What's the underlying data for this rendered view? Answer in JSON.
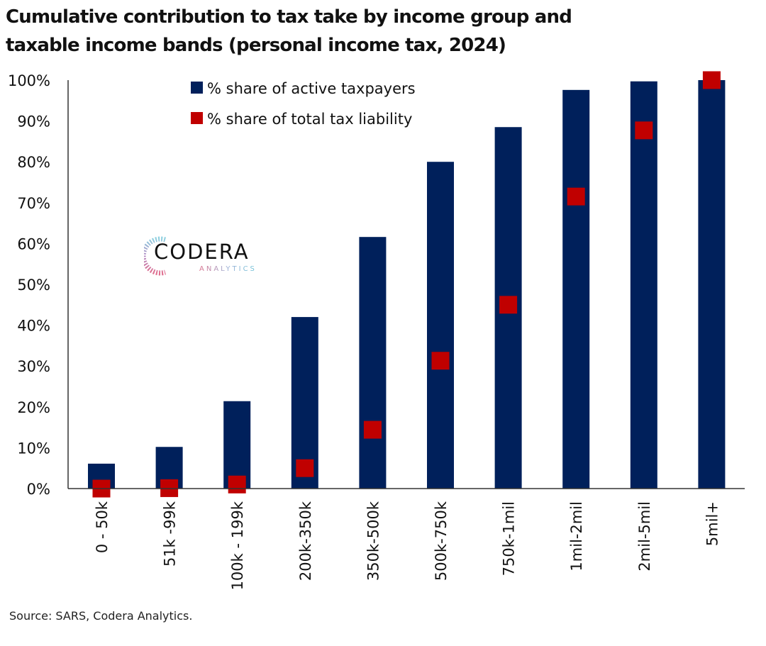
{
  "title": "Cumulative contribution to tax take by income group and taxable income bands (personal income tax, 2024)",
  "source": "Source: SARS, Codera Analytics.",
  "logo": {
    "name": "CODERA",
    "subtitle": "ANALYTICS"
  },
  "colors": {
    "bars": "#00205B",
    "markers": "#C00000",
    "axis": "#333333"
  },
  "chart_data": {
    "type": "bar",
    "title": "Cumulative contribution to tax take by income group and taxable income bands (personal income tax, 2024)",
    "xlabel": "",
    "ylabel": "",
    "ylim": [
      0,
      100
    ],
    "y_ticks": [
      0,
      10,
      20,
      30,
      40,
      50,
      60,
      70,
      80,
      90,
      100
    ],
    "y_tick_labels": [
      "0%",
      "10%",
      "20%",
      "30%",
      "40%",
      "50%",
      "60%",
      "70%",
      "80%",
      "90%",
      "100%"
    ],
    "grid": false,
    "legend_position": "top-center",
    "categories": [
      "0 - 50k",
      "51k -99k",
      "100k - 199k",
      "200k-350k",
      "350k-500k",
      "500k-750k",
      "750k-1mil",
      "1mil-2mil",
      "2mil-5mil",
      "5mil+"
    ],
    "series": [
      {
        "name": "% share of active taxpayers",
        "type": "bar",
        "values": [
          6.1,
          10.2,
          21.4,
          42.0,
          61.6,
          80.0,
          88.5,
          97.6,
          99.7,
          100.0
        ]
      },
      {
        "name": "% share of total tax liability",
        "type": "marker",
        "values": [
          0.0,
          0.1,
          1.0,
          5.0,
          14.4,
          31.3,
          45.0,
          71.5,
          87.7,
          100.0
        ]
      }
    ]
  }
}
